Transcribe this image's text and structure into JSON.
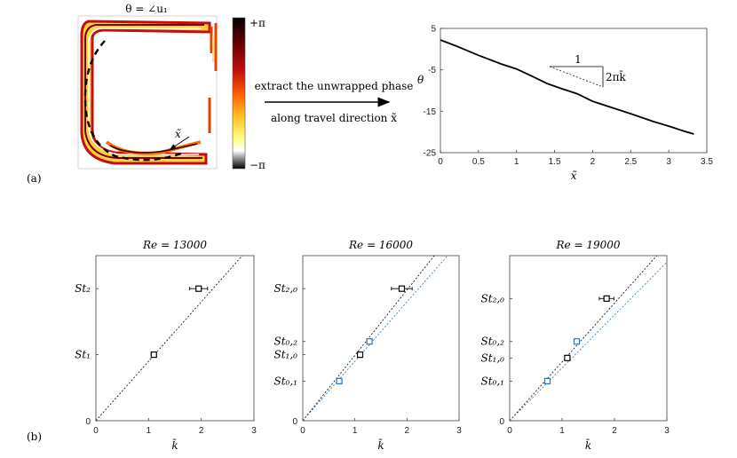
{
  "panel_a": {
    "label": "(a)",
    "map_title": "θ = ∠u₁",
    "colorbar_top": "+π",
    "colorbar_bottom": "−π",
    "path_label": "x̃",
    "arrow_text_line1": "extract the unwrapped phase",
    "arrow_text_line2": "along travel direction x̃",
    "slope_run": "1",
    "slope_rise": "2πk̄"
  },
  "panel_b": {
    "label": "(b)"
  },
  "colors": {
    "black_series": "#000000",
    "blue_series": "#1f77b4"
  },
  "chart_data": [
    {
      "type": "line",
      "xlabel": "x̃",
      "ylabel": "θ",
      "xlim": [
        0,
        3.5
      ],
      "ylim": [
        -25,
        5
      ],
      "xticks": [
        "0",
        "0.5",
        "1",
        "1.5",
        "2",
        "2.5",
        "3",
        "3.5"
      ],
      "yticks": [
        "5",
        "-5",
        "-15",
        "-25"
      ],
      "grid": false,
      "series": [
        {
          "x": [
            0,
            0.2,
            0.5,
            0.8,
            1.0,
            1.2,
            1.4,
            1.6,
            1.8,
            2.0,
            2.2,
            2.5,
            2.8,
            3.0,
            3.2,
            3.33
          ],
          "values": [
            2.2,
            0.8,
            -1.5,
            -3.6,
            -4.8,
            -6.5,
            -8.3,
            -9.6,
            -10.8,
            -12.6,
            -13.8,
            -15.6,
            -17.5,
            -18.6,
            -19.8,
            -20.5
          ]
        }
      ]
    },
    {
      "type": "scatter",
      "title": "Re = 13000",
      "xlabel": "k̄",
      "xlim": [
        0,
        3
      ],
      "ylim": [
        0,
        2.5
      ],
      "xticks": [
        "0",
        "1",
        "2",
        "3"
      ],
      "ytick_labels": [
        "0",
        "St₁",
        "St₂"
      ],
      "ytick_values": [
        0,
        1.0,
        2.0
      ],
      "lines": [
        {
          "color": "black",
          "slope": 0.9
        }
      ],
      "series": [
        {
          "name": "",
          "color": "black",
          "points": [
            {
              "x": 1.1,
              "y": 1.0,
              "xerr": 0.03
            },
            {
              "x": 1.95,
              "y": 2.0,
              "xerr": 0.17
            }
          ]
        }
      ]
    },
    {
      "type": "scatter",
      "title": "Re = 16000",
      "xlabel": "k̄",
      "xlim": [
        0,
        3
      ],
      "ylim": [
        0,
        2.5
      ],
      "xticks": [
        "0",
        "1",
        "2",
        "3"
      ],
      "ytick_labels": [
        "0",
        "St₀,₁",
        "St₁,₀",
        "St₀,₂",
        "St₂,₀"
      ],
      "ytick_values": [
        0,
        0.6,
        1.0,
        1.2,
        2.0
      ],
      "lines": [
        {
          "color": "black",
          "slope": 0.99
        },
        {
          "color": "blue",
          "slope": 0.9
        }
      ],
      "series": [
        {
          "name": "",
          "color": "black",
          "points": [
            {
              "x": 1.1,
              "y": 1.0,
              "xerr": 0.03
            },
            {
              "x": 1.9,
              "y": 2.0,
              "xerr": 0.2
            }
          ]
        },
        {
          "name": "",
          "color": "blue",
          "points": [
            {
              "x": 0.7,
              "y": 0.6,
              "xerr": 0.03
            },
            {
              "x": 1.28,
              "y": 1.2,
              "xerr": 0.03
            }
          ]
        }
      ]
    },
    {
      "type": "scatter",
      "title": "Re = 19000",
      "xlabel": "k̄",
      "xlim": [
        0,
        3
      ],
      "ylim": [
        0,
        2.5
      ],
      "xticks": [
        "0",
        "1",
        "2",
        "3"
      ],
      "ytick_labels": [
        "0",
        "St₀,₁",
        "St₁,₀",
        "St₀,₂",
        "St₂,₀"
      ],
      "ytick_values": [
        0,
        0.6,
        0.95,
        1.2,
        1.85
      ],
      "lines": [
        {
          "color": "black",
          "slope": 0.89
        },
        {
          "color": "blue",
          "slope": 0.8
        }
      ],
      "series": [
        {
          "name": "",
          "color": "black",
          "points": [
            {
              "x": 1.1,
              "y": 0.95,
              "xerr": 0.03
            },
            {
              "x": 1.85,
              "y": 1.85,
              "xerr": 0.14
            }
          ]
        },
        {
          "name": "",
          "color": "blue",
          "points": [
            {
              "x": 0.72,
              "y": 0.6,
              "xerr": 0.03
            },
            {
              "x": 1.28,
              "y": 1.2,
              "xerr": 0.03
            }
          ]
        }
      ]
    }
  ]
}
